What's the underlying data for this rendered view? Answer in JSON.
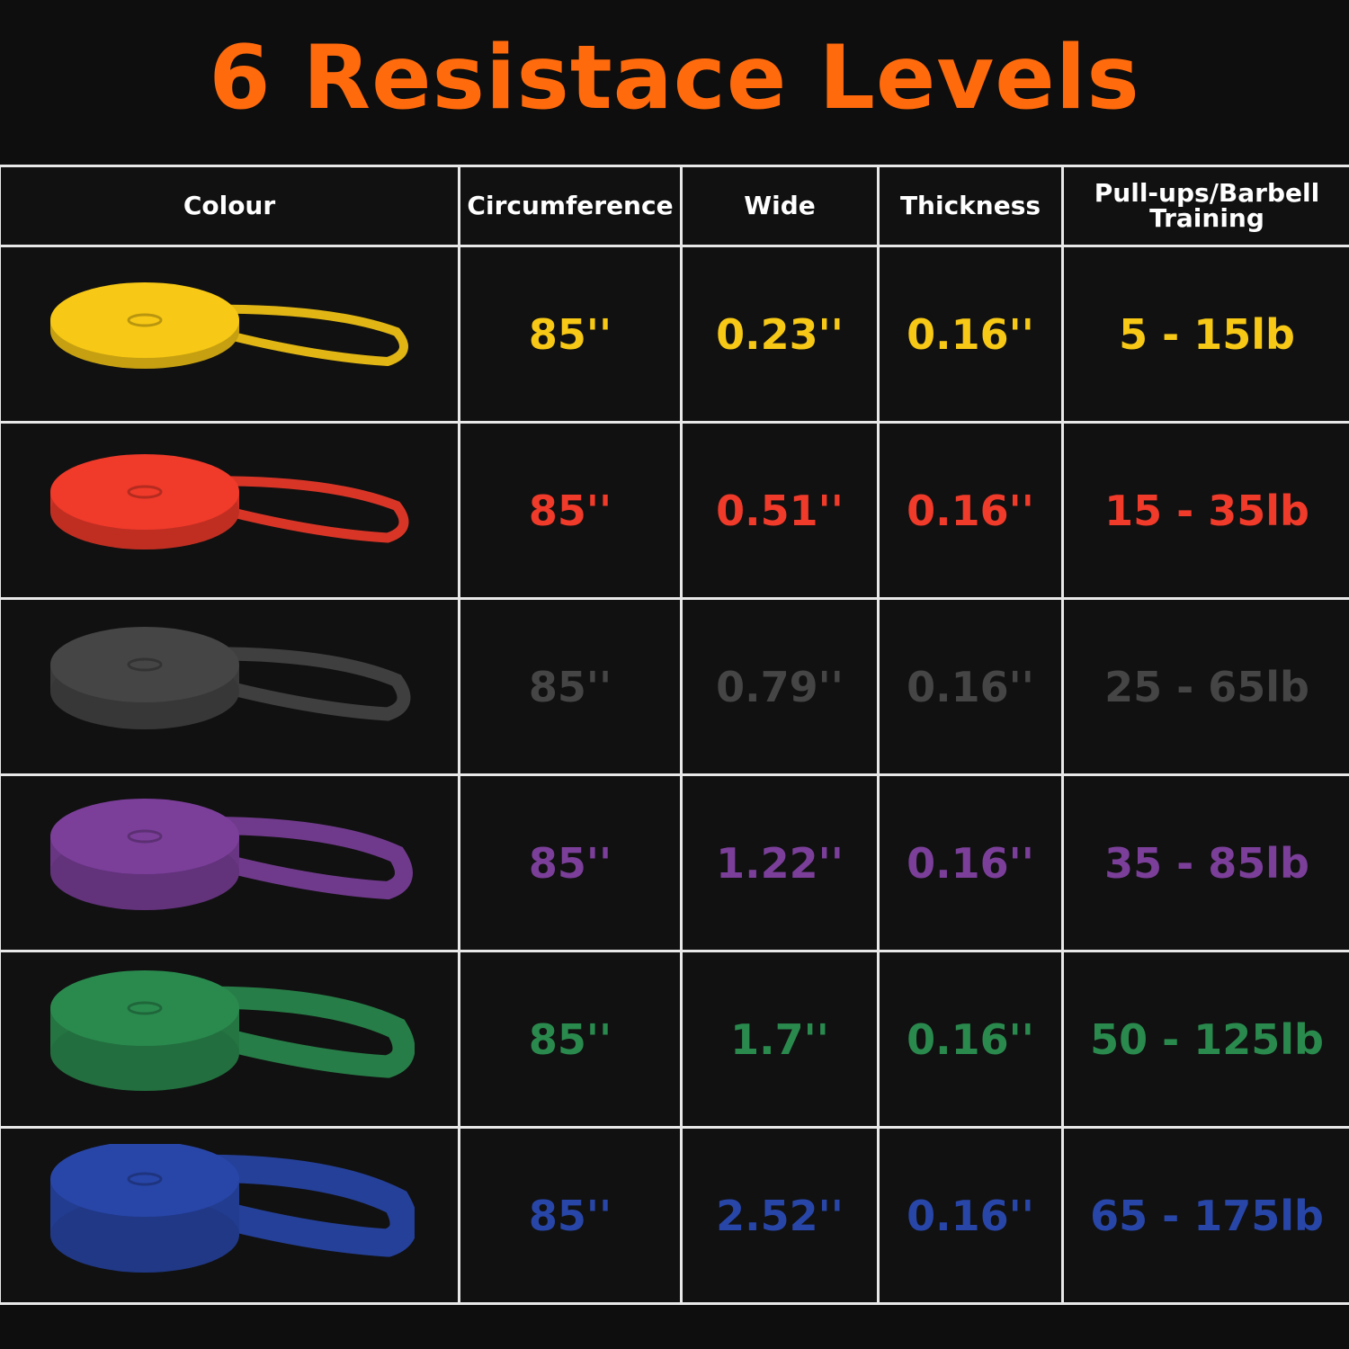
{
  "title": "6 Resistace Levels",
  "headers": [
    "Colour",
    "Circumference",
    "Wide",
    "Thickness",
    "Pull-ups/Barbell Training"
  ],
  "rows": [
    {
      "colour": "yellow",
      "color_hex": "#f7c815",
      "circumference": "85''",
      "wide": "0.23''",
      "thickness": "0.16''",
      "resistance": "5 - 15lb"
    },
    {
      "colour": "red",
      "color_hex": "#f03a2a",
      "circumference": "85''",
      "wide": "0.51''",
      "thickness": "0.16''",
      "resistance": "15 - 35lb"
    },
    {
      "colour": "black",
      "color_hex": "#454545",
      "circumference": "85''",
      "wide": "0.79''",
      "thickness": "0.16''",
      "resistance": "25 - 65lb"
    },
    {
      "colour": "purple",
      "color_hex": "#7b3f9a",
      "circumference": "85''",
      "wide": "1.22''",
      "thickness": "0.16''",
      "resistance": "35 - 85lb"
    },
    {
      "colour": "green",
      "color_hex": "#2a8a4e",
      "circumference": "85''",
      "wide": "1.7''",
      "thickness": "0.16''",
      "resistance": "50 - 125lb"
    },
    {
      "colour": "blue",
      "color_hex": "#2846a8",
      "circumference": "85''",
      "wide": "2.52''",
      "thickness": "0.16''",
      "resistance": "65 - 175lb"
    }
  ]
}
